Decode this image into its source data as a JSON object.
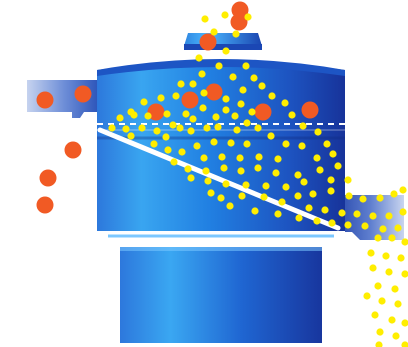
{
  "diagram": {
    "colors": {
      "body_dark": "#17339a",
      "body_mid": "#1f5cc7",
      "body_light": "#2f93e8",
      "body_highlight": "#4fb6ff",
      "outlet_light": "#b9c9ea",
      "outlet_dark": "#2a4fb0",
      "screen_line": "#ffffff",
      "coarse_particle": "#f15a24",
      "fine_particle": "#ffee00"
    },
    "components": [
      "feed-inlet",
      "top-cover",
      "upper-frame",
      "oversize-outlet",
      "inclined-screen-mesh",
      "lower-frame",
      "fines-outlet",
      "base-support"
    ],
    "particles": {
      "coarse_count": 13,
      "fine_count": 140
    }
  }
}
